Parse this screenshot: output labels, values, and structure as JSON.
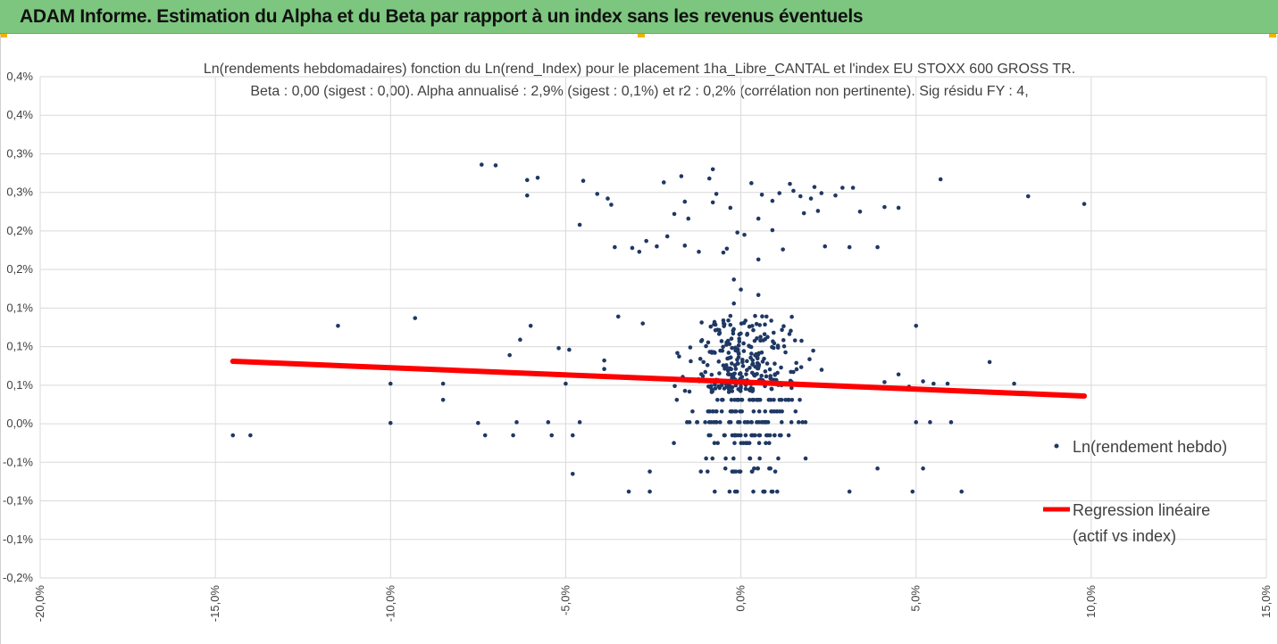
{
  "banner": {
    "title": "ADAM Informe. Estimation du Alpha et du Beta par rapport à un index sans les revenus éventuels"
  },
  "colors": {
    "banner": "#7dc67f",
    "points": "#1f3864",
    "regression": "#ff0000",
    "grid": "#d9d9d9"
  },
  "chart_data": {
    "type": "scatter",
    "title": "Ln(rendements hebdomadaires) fonction du Ln(rend_Index) pour le placement 1ha_Libre_CANTAL et l'index EU STOXX 600 GROSS TR.",
    "subtitle": "Beta : 0,00 (sigest : 0,00). Alpha annualisé : 2,9% (sigest : 0,1%) et r2 : 0,2% (corrélation non pertinente). Sig résidu FY : 4,",
    "xlim": [
      -20,
      15
    ],
    "ylim": [
      -0.2,
      0.45
    ],
    "x_ticks": [
      -20,
      -15,
      -10,
      -5,
      0,
      5,
      10,
      15
    ],
    "x_tick_labels": [
      "-20,0%",
      "-15,0%",
      "-10,0%",
      "-5,0%",
      "0,0%",
      "5,0%",
      "10,0%",
      "15,0%"
    ],
    "y_ticks": [
      -0.2,
      -0.15,
      -0.1,
      -0.05,
      0,
      0.05,
      0.1,
      0.15,
      0.2,
      0.25,
      0.3,
      0.35,
      0.4,
      0.45
    ],
    "y_tick_labels": [
      "-0,2%",
      "-0,1%",
      "-0,1%",
      "-0,1%",
      "0,0%",
      "0,1%",
      "0,1%",
      "0,1%",
      "0,2%",
      "0,2%",
      "0,3%",
      "0,3%",
      "0,4%",
      "0,4%"
    ],
    "grid": true,
    "legend_position": "right",
    "series": [
      {
        "name": "Ln(rendement hebdo)",
        "kind": "scatter",
        "points": [
          [
            -14.5,
            -0.015
          ],
          [
            -14.0,
            -0.015
          ],
          [
            -11.5,
            0.127
          ],
          [
            -10.0,
            0.052
          ],
          [
            -10.0,
            0.001
          ],
          [
            -9.3,
            0.137
          ],
          [
            -8.5,
            0.052
          ],
          [
            -8.5,
            0.031
          ],
          [
            -7.5,
            0.001
          ],
          [
            -7.3,
            -0.015
          ],
          [
            -7.4,
            0.336
          ],
          [
            -7.0,
            0.335
          ],
          [
            -6.6,
            0.089
          ],
          [
            -6.5,
            -0.015
          ],
          [
            -6.4,
            0.002
          ],
          [
            -6.3,
            0.109
          ],
          [
            -6.1,
            0.316
          ],
          [
            -6.0,
            0.127
          ],
          [
            -6.1,
            0.296
          ],
          [
            -5.8,
            0.319
          ],
          [
            -5.5,
            0.002
          ],
          [
            -5.4,
            -0.015
          ],
          [
            -5.2,
            0.098
          ],
          [
            -5.0,
            0.052
          ],
          [
            -4.9,
            0.096
          ],
          [
            -4.8,
            -0.015
          ],
          [
            -4.6,
            0.002
          ],
          [
            -4.6,
            0.258
          ],
          [
            -4.5,
            0.315
          ],
          [
            -4.1,
            0.298
          ],
          [
            -3.8,
            0.292
          ],
          [
            -3.7,
            0.284
          ],
          [
            -3.6,
            0.229
          ],
          [
            -3.9,
            0.082
          ],
          [
            -3.9,
            0.071
          ],
          [
            -3.5,
            0.139
          ],
          [
            -3.1,
            0.228
          ],
          [
            -2.9,
            0.223
          ],
          [
            -2.8,
            0.13
          ],
          [
            -2.7,
            0.237
          ],
          [
            -2.4,
            0.23
          ],
          [
            -2.2,
            0.313
          ],
          [
            -2.1,
            0.243
          ],
          [
            -1.9,
            0.272
          ],
          [
            -1.7,
            0.321
          ],
          [
            -1.6,
            0.288
          ],
          [
            -1.5,
            0.266
          ],
          [
            -1.6,
            0.231
          ],
          [
            -1.2,
            0.223
          ],
          [
            -0.9,
            0.318
          ],
          [
            -0.8,
            0.287
          ],
          [
            -0.8,
            0.33
          ],
          [
            -0.5,
            0.222
          ],
          [
            -0.4,
            0.227
          ],
          [
            -0.7,
            0.298
          ],
          [
            -0.3,
            0.28
          ],
          [
            -0.2,
            0.187
          ],
          [
            -0.1,
            0.248
          ],
          [
            0.1,
            0.245
          ],
          [
            0.3,
            0.312
          ],
          [
            0.5,
            0.266
          ],
          [
            0.5,
            0.213
          ],
          [
            0.6,
            0.297
          ],
          [
            0.9,
            0.289
          ],
          [
            0.9,
            0.251
          ],
          [
            1.1,
            0.299
          ],
          [
            1.2,
            0.226
          ],
          [
            1.4,
            0.311
          ],
          [
            1.5,
            0.302
          ],
          [
            1.7,
            0.295
          ],
          [
            1.8,
            0.273
          ],
          [
            2.0,
            0.292
          ],
          [
            2.1,
            0.307
          ],
          [
            2.2,
            0.276
          ],
          [
            2.3,
            0.299
          ],
          [
            2.4,
            0.23
          ],
          [
            2.7,
            0.296
          ],
          [
            2.9,
            0.306
          ],
          [
            3.2,
            0.306
          ],
          [
            3.1,
            0.229
          ],
          [
            3.4,
            0.275
          ],
          [
            3.9,
            0.229
          ],
          [
            4.1,
            0.281
          ],
          [
            4.5,
            0.28
          ],
          [
            5.7,
            0.317
          ],
          [
            8.2,
            0.295
          ],
          [
            9.8,
            0.285
          ],
          [
            0.0,
            0.174
          ],
          [
            0.5,
            0.167
          ],
          [
            -0.2,
            0.156
          ],
          [
            4.1,
            0.054
          ],
          [
            4.5,
            0.064
          ],
          [
            4.8,
            0.048
          ],
          [
            5.0,
            0.127
          ],
          [
            5.2,
            0.055
          ],
          [
            5.5,
            0.052
          ],
          [
            5.9,
            0.052
          ],
          [
            7.1,
            0.08
          ],
          [
            7.8,
            0.052
          ],
          [
            6.0,
            0.002
          ],
          [
            6.3,
            -0.088
          ],
          [
            5.2,
            -0.058
          ],
          [
            4.9,
            -0.088
          ],
          [
            3.9,
            -0.058
          ],
          [
            3.1,
            -0.088
          ],
          [
            5.0,
            0.002
          ],
          [
            5.4,
            0.002
          ],
          [
            -2.6,
            -0.088
          ],
          [
            -2.6,
            -0.062
          ],
          [
            -3.2,
            -0.088
          ],
          [
            -4.8,
            -0.065
          ]
        ]
      },
      {
        "name": "Regression linéaire (actif vs index)",
        "kind": "line",
        "points": [
          [
            -14.5,
            0.081
          ],
          [
            9.8,
            0.036
          ]
        ]
      }
    ],
    "legend_labels": {
      "scatter": "Ln(rendement hebdo)",
      "line_1": "Regression linéaire",
      "line_2": "(actif vs index)"
    }
  }
}
